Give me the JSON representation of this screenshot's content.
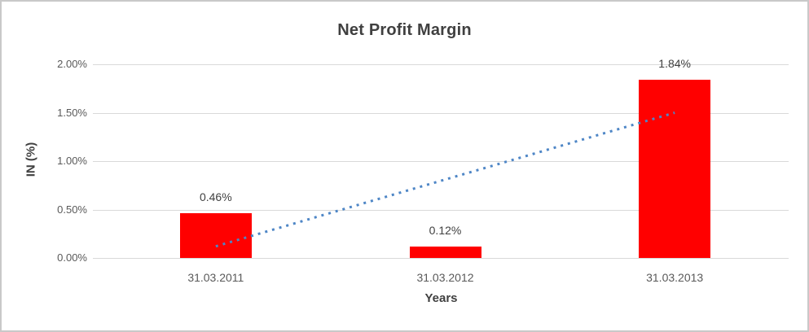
{
  "frame": {
    "border_color": "#c9c9c9",
    "background": "#ffffff"
  },
  "chart_data": {
    "type": "bar",
    "title": "Net Profit Margin",
    "xlabel": "Years",
    "ylabel": "IN (%)",
    "categories": [
      "31.03.2011",
      "31.03.2012",
      "31.03.2013"
    ],
    "values": [
      0.46,
      0.12,
      1.84
    ],
    "data_labels": [
      "0.46%",
      "0.12%",
      "1.84%"
    ],
    "yticks": [
      {
        "value": 0.0,
        "label": "0.00%"
      },
      {
        "value": 0.5,
        "label": "0.50%"
      },
      {
        "value": 1.0,
        "label": "1.00%"
      },
      {
        "value": 1.5,
        "label": "1.50%"
      },
      {
        "value": 2.0,
        "label": "2.00%"
      }
    ],
    "ylim": [
      0,
      2.0
    ],
    "grid": true,
    "legend": "none",
    "bar_color": "#ff0000",
    "gridline_color": "#d9d9d9",
    "text_color": "#595959",
    "title_color": "#404040",
    "trendline": {
      "style": "dotted",
      "color": "#4e86c6",
      "start_value": 0.12,
      "end_value": 1.5
    }
  }
}
